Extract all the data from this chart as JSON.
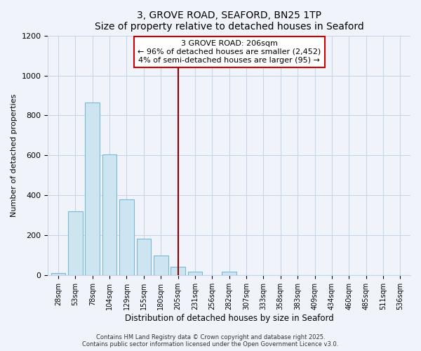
{
  "title": "3, GROVE ROAD, SEAFORD, BN25 1TP",
  "subtitle": "Size of property relative to detached houses in Seaford",
  "xlabel": "Distribution of detached houses by size in Seaford",
  "ylabel": "Number of detached properties",
  "bar_labels": [
    "28sqm",
    "53sqm",
    "78sqm",
    "104sqm",
    "129sqm",
    "155sqm",
    "180sqm",
    "205sqm",
    "231sqm",
    "256sqm",
    "282sqm",
    "307sqm",
    "333sqm",
    "358sqm",
    "383sqm",
    "409sqm",
    "434sqm",
    "460sqm",
    "485sqm",
    "511sqm",
    "536sqm"
  ],
  "bar_values": [
    10,
    320,
    865,
    605,
    380,
    185,
    100,
    45,
    20,
    0,
    18,
    0,
    0,
    0,
    0,
    0,
    0,
    0,
    0,
    0,
    0
  ],
  "bar_color": "#cce5f0",
  "bar_edge_color": "#7ab8d4",
  "vline_x_index": 7,
  "vline_color": "#8b0000",
  "annotation_line1": "3 GROVE ROAD: 206sqm",
  "annotation_line2": "← 96% of detached houses are smaller (2,452)",
  "annotation_line3": "4% of semi-detached houses are larger (95) →",
  "annotation_box_color": "#ffffff",
  "annotation_box_edge": "#cc0000",
  "ylim": [
    0,
    1200
  ],
  "yticks": [
    0,
    200,
    400,
    600,
    800,
    1000,
    1200
  ],
  "footer_line1": "Contains HM Land Registry data © Crown copyright and database right 2025.",
  "footer_line2": "Contains public sector information licensed under the Open Government Licence v3.0.",
  "background_color": "#f0f4fa",
  "grid_color": "#c8d4e8",
  "title_fontsize": 10,
  "subtitle_fontsize": 9,
  "axis_label_fontsize": 8,
  "tick_fontsize": 7,
  "annotation_fontsize": 8,
  "footer_fontsize": 6
}
